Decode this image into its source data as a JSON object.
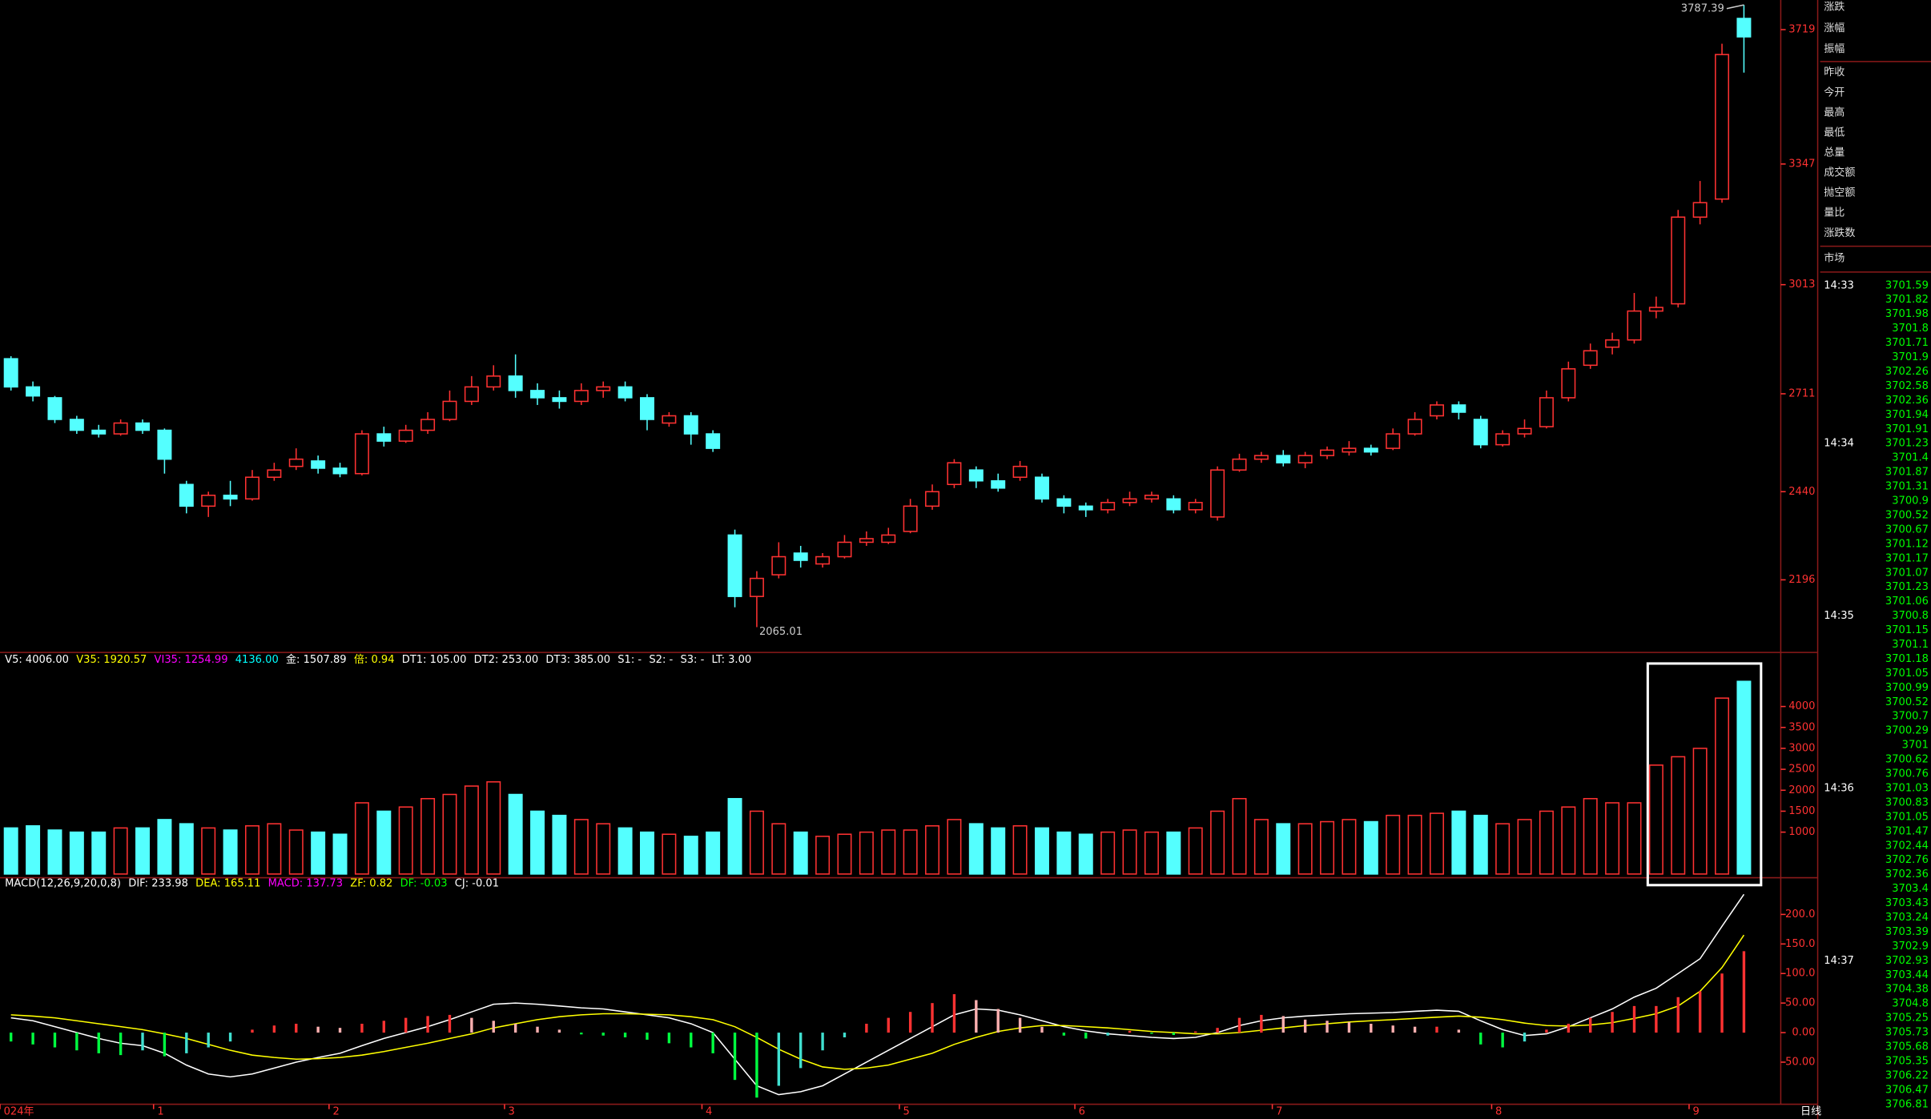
{
  "chart_data": [
    {
      "type": "candlestick",
      "categories": [
        "024年",
        null,
        null,
        null,
        null,
        null,
        null,
        "1",
        null,
        null,
        null,
        null,
        null,
        null,
        null,
        "2",
        null,
        null,
        null,
        null,
        null,
        null,
        null,
        "3",
        null,
        null,
        null,
        null,
        null,
        null,
        null,
        null,
        "4",
        null,
        null,
        null,
        null,
        null,
        null,
        null,
        null,
        "5",
        null,
        null,
        null,
        null,
        null,
        null,
        null,
        "6",
        null,
        null,
        null,
        null,
        null,
        null,
        null,
        null,
        "7",
        null,
        null,
        null,
        null,
        null,
        null,
        null,
        null,
        null,
        "8",
        null,
        null,
        null,
        null,
        null,
        null,
        null,
        null,
        "9",
        null,
        null
      ],
      "open": [
        2808,
        2730,
        2700,
        2640,
        2610,
        2600,
        2630,
        2610,
        2460,
        2400,
        2430,
        2420,
        2480,
        2510,
        2525,
        2505,
        2490,
        2600,
        2580,
        2610,
        2640,
        2690,
        2730,
        2760,
        2720,
        2700,
        2690,
        2720,
        2730,
        2700,
        2630,
        2650,
        2600,
        2320,
        2150,
        2210,
        2270,
        2240,
        2260,
        2300,
        2300,
        2330,
        2400,
        2460,
        2500,
        2470,
        2480,
        2480,
        2420,
        2400,
        2390,
        2410,
        2420,
        2420,
        2390,
        2370,
        2500,
        2530,
        2540,
        2520,
        2540,
        2550,
        2560,
        2560,
        2600,
        2650,
        2680,
        2640,
        2570,
        2600,
        2620,
        2700,
        2790,
        2840,
        2860,
        2940,
        2960,
        3200,
        3250,
        3750
      ],
      "high": [
        2815,
        2745,
        2705,
        2650,
        2625,
        2640,
        2640,
        2615,
        2470,
        2440,
        2470,
        2500,
        2520,
        2560,
        2540,
        2520,
        2610,
        2620,
        2625,
        2660,
        2720,
        2760,
        2790,
        2820,
        2740,
        2720,
        2740,
        2745,
        2745,
        2710,
        2660,
        2660,
        2610,
        2335,
        2220,
        2300,
        2290,
        2270,
        2320,
        2330,
        2340,
        2420,
        2460,
        2530,
        2510,
        2490,
        2525,
        2490,
        2430,
        2410,
        2420,
        2440,
        2440,
        2430,
        2420,
        2510,
        2545,
        2550,
        2555,
        2550,
        2565,
        2580,
        2570,
        2615,
        2660,
        2690,
        2690,
        2650,
        2610,
        2640,
        2720,
        2800,
        2850,
        2880,
        2990,
        2980,
        3220,
        3300,
        3680,
        3787.39
      ],
      "low": [
        2720,
        2690,
        2630,
        2600,
        2590,
        2595,
        2600,
        2490,
        2380,
        2370,
        2400,
        2415,
        2470,
        2500,
        2490,
        2480,
        2485,
        2565,
        2575,
        2600,
        2635,
        2680,
        2720,
        2700,
        2680,
        2670,
        2680,
        2700,
        2690,
        2610,
        2620,
        2570,
        2550,
        2120,
        2065.01,
        2200,
        2230,
        2230,
        2255,
        2290,
        2295,
        2325,
        2390,
        2450,
        2450,
        2440,
        2470,
        2410,
        2380,
        2370,
        2380,
        2400,
        2410,
        2380,
        2380,
        2360,
        2495,
        2520,
        2510,
        2505,
        2530,
        2540,
        2540,
        2555,
        2595,
        2640,
        2640,
        2560,
        2565,
        2590,
        2615,
        2690,
        2780,
        2820,
        2850,
        2920,
        2950,
        3180,
        3240,
        3600
      ],
      "close": [
        2730,
        2705,
        2640,
        2610,
        2600,
        2630,
        2610,
        2530,
        2400,
        2430,
        2420,
        2480,
        2500,
        2530,
        2505,
        2490,
        2600,
        2580,
        2610,
        2640,
        2690,
        2730,
        2760,
        2720,
        2700,
        2690,
        2720,
        2730,
        2700,
        2640,
        2650,
        2600,
        2560,
        2150,
        2200,
        2260,
        2250,
        2260,
        2300,
        2310,
        2320,
        2400,
        2440,
        2520,
        2470,
        2450,
        2510,
        2420,
        2400,
        2390,
        2410,
        2420,
        2430,
        2390,
        2410,
        2500,
        2530,
        2540,
        2520,
        2540,
        2555,
        2560,
        2550,
        2600,
        2640,
        2680,
        2660,
        2570,
        2600,
        2615,
        2700,
        2780,
        2830,
        2860,
        2940,
        2950,
        3200,
        3240,
        3650,
        3699
      ],
      "ylim": [
        1995,
        3801
      ],
      "yticks": [
        3719,
        3347,
        3013,
        2711,
        2440,
        2196
      ],
      "high_label": "3787.39",
      "low_label": "2065.01",
      "colors": {
        "up": "#ff3232",
        "down": "#54ffff",
        "axis": "#ff3232"
      }
    },
    {
      "type": "bar",
      "header": [
        "V5: 4006.00",
        "V35: 1920.57",
        "VI35: 1254.99",
        "4136.00",
        "金: 1507.89",
        "倍: 0.94",
        "DT1: 105.00",
        "DT2: 253.00",
        "DT3: 385.00",
        "S1: -",
        "S2: -",
        "S3: -",
        "LT: 3.00"
      ],
      "header_colors": [
        "#ffffff",
        "#ffff00",
        "#ff00ff",
        "#00ffff",
        "#ffffff",
        "#ffff00",
        "#ffffff",
        "#ffffff",
        "#ffffff",
        "#ffffff",
        "#ffffff",
        "#ffffff",
        "#ffffff"
      ],
      "values": [
        1100,
        1150,
        1050,
        1000,
        1000,
        1100,
        1100,
        1300,
        1200,
        1100,
        1050,
        1150,
        1200,
        1050,
        1000,
        950,
        1700,
        1500,
        1600,
        1800,
        1900,
        2100,
        2200,
        1900,
        1500,
        1400,
        1300,
        1200,
        1100,
        1000,
        950,
        900,
        1000,
        1800,
        1500,
        1200,
        1000,
        900,
        950,
        1000,
        1050,
        1050,
        1150,
        1300,
        1200,
        1100,
        1150,
        1100,
        1000,
        950,
        1000,
        1050,
        1000,
        1000,
        1100,
        1500,
        1800,
        1300,
        1200,
        1200,
        1250,
        1300,
        1250,
        1400,
        1400,
        1450,
        1500,
        1400,
        1200,
        1300,
        1500,
        1600,
        1800,
        1700,
        1700,
        2600,
        2800,
        3000,
        4200,
        4600
      ],
      "ylim": [
        0,
        5290
      ],
      "yticks": [
        4000,
        3500,
        3000,
        2500,
        2000,
        1500,
        1000
      ]
    },
    {
      "type": "macd",
      "header": [
        "MACD(12,26,9,20,0,8)",
        "DIF: 233.98",
        "DEA: 165.11",
        "MACD: 137.73",
        "ZF: 0.82",
        "DF: -0.03",
        "CJ: -0.01"
      ],
      "header_colors": [
        "#ffffff",
        "#ffffff",
        "#ffff00",
        "#ff00ff",
        "#ffff00",
        "#00ff00",
        "#ffffff"
      ],
      "series": [
        {
          "name": "DIF",
          "color": "#ffffff",
          "values": [
            25,
            20,
            10,
            0,
            -10,
            -18,
            -22,
            -35,
            -55,
            -70,
            -75,
            -70,
            -60,
            -50,
            -42,
            -35,
            -22,
            -10,
            0,
            10,
            22,
            35,
            48,
            50,
            48,
            45,
            42,
            40,
            35,
            30,
            25,
            15,
            0,
            -45,
            -90,
            -105,
            -100,
            -90,
            -70,
            -50,
            -30,
            -10,
            10,
            30,
            40,
            38,
            30,
            20,
            10,
            3,
            -2,
            -5,
            -8,
            -10,
            -8,
            0,
            12,
            20,
            25,
            28,
            30,
            32,
            33,
            34,
            36,
            38,
            36,
            20,
            5,
            -5,
            -2,
            10,
            25,
            40,
            60,
            75,
            100,
            125,
            180,
            233.98
          ]
        },
        {
          "name": "DEA",
          "color": "#ffff00",
          "values": [
            30,
            28,
            25,
            20,
            15,
            10,
            5,
            -2,
            -10,
            -20,
            -30,
            -38,
            -42,
            -45,
            -44,
            -42,
            -38,
            -32,
            -25,
            -18,
            -10,
            -2,
            8,
            15,
            22,
            27,
            30,
            32,
            32,
            31,
            30,
            27,
            22,
            10,
            -8,
            -28,
            -45,
            -58,
            -62,
            -60,
            -55,
            -45,
            -35,
            -20,
            -8,
            2,
            8,
            12,
            12,
            10,
            8,
            5,
            2,
            0,
            -2,
            -2,
            0,
            4,
            8,
            12,
            15,
            18,
            20,
            22,
            24,
            26,
            28,
            26,
            22,
            16,
            12,
            11,
            13,
            17,
            24,
            32,
            45,
            70,
            110,
            165.11
          ]
        },
        {
          "name": "MACD",
          "values": [
            -15,
            -20,
            -25,
            -30,
            -35,
            -38,
            -30,
            -40,
            -35,
            -25,
            -15,
            5,
            12,
            15,
            10,
            8,
            15,
            20,
            25,
            28,
            30,
            25,
            20,
            15,
            10,
            5,
            -3,
            -5,
            -8,
            -12,
            -18,
            -25,
            -35,
            -80,
            -110,
            -90,
            -60,
            -30,
            -8,
            15,
            25,
            35,
            50,
            65,
            55,
            40,
            25,
            10,
            -5,
            -10,
            -5,
            3,
            -2,
            -4,
            2,
            8,
            25,
            30,
            28,
            22,
            20,
            18,
            15,
            12,
            10,
            10,
            5,
            -20,
            -25,
            -15,
            5,
            15,
            25,
            35,
            45,
            45,
            60,
            70,
            100,
            137.73
          ],
          "colors": {
            "pos_up": "#ff3232",
            "pos_down": "#ffb0b0",
            "neg_down": "#00ff40",
            "neg_up": "#40e0d0"
          }
        }
      ],
      "ylim": [
        -117,
        260
      ],
      "yticks": [
        {
          "value": 200,
          "label": "200.0"
        },
        {
          "value": 150,
          "label": "150.0"
        },
        {
          "value": 100,
          "label": "100.0"
        },
        {
          "value": 50,
          "label": "50.00"
        },
        {
          "value": 0,
          "label": "0.00"
        },
        {
          "value": -50,
          "label": "-50.00"
        }
      ]
    }
  ],
  "sidebar": {
    "fields": [
      "涨跌",
      "涨幅",
      "振幅",
      "昨收",
      "今开",
      "最高",
      "最低",
      "总量",
      "成交额",
      "抛空额",
      "量比",
      "涨跌数"
    ],
    "market": "市场",
    "ticks": [
      {
        "time": "14:33",
        "prices": [
          3701.59,
          3701.82,
          3701.98,
          3701.8,
          3701.71,
          3701.9,
          3702.26,
          3702.58,
          3702.36,
          3701.94,
          3701.91
        ]
      },
      {
        "time": "14:34",
        "prices": [
          3701.23,
          3701.4,
          3701.87,
          3701.31,
          3700.9,
          3700.52,
          3700.67,
          3701.12,
          3701.17,
          3701.07,
          3701.23,
          3701.06
        ]
      },
      {
        "time": "14:35",
        "prices": [
          3700.8,
          3701.15,
          3701.1,
          3701.18,
          3701.05,
          3700.99,
          3700.52,
          3700.7,
          3700.29,
          3701.0,
          3700.62,
          3700.76
        ]
      },
      {
        "time": "14:36",
        "prices": [
          3701.03,
          3700.83,
          3701.05,
          3701.47,
          3702.44,
          3702.76,
          3702.36,
          3703.4,
          3703.43,
          3703.24,
          3703.39,
          3702.9
        ]
      },
      {
        "time": "14:37",
        "prices": [
          3702.93,
          3703.44,
          3704.38,
          3704.8,
          3705.25,
          3705.73,
          3705.68,
          3705.35,
          3706.22,
          3706.47,
          3706.81
        ]
      }
    ]
  },
  "period": "日线"
}
